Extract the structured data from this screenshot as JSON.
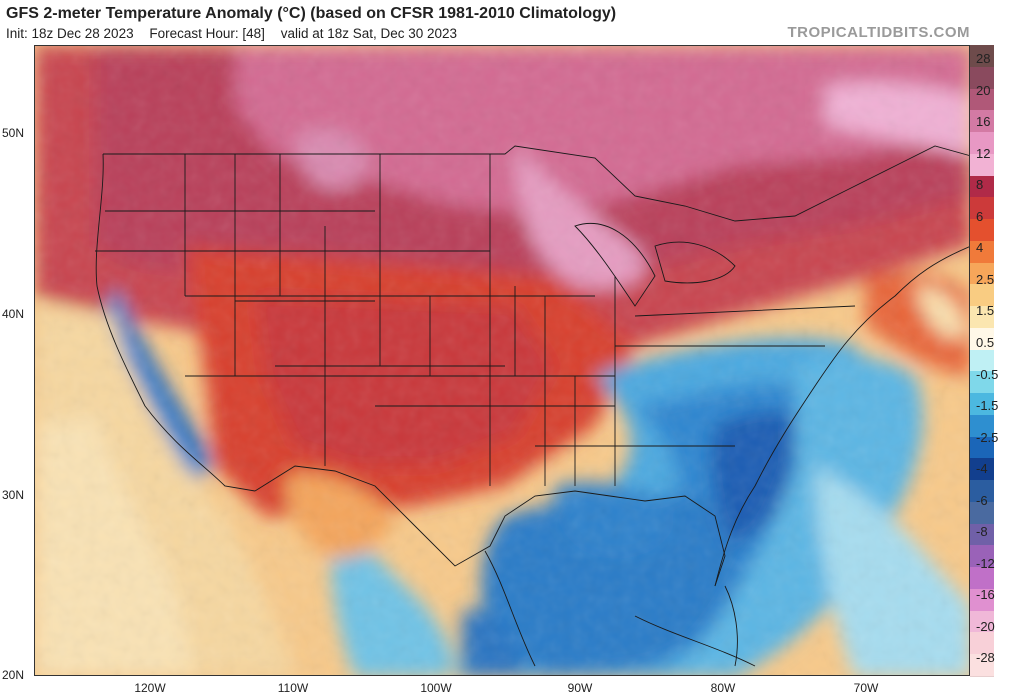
{
  "header": {
    "title": "GFS 2-meter Temperature Anomaly (°C) (based on CFSR 1981-2010 Climatology)",
    "init": "Init: 18z Dec 28 2023",
    "forecast_hour": "Forecast Hour: [48]",
    "valid": "valid at 18z Sat, Dec 30 2023",
    "brand": "TROPICALTIDBITS.COM"
  },
  "axes": {
    "lat_labels": [
      "50N",
      "40N",
      "30N",
      "20N"
    ],
    "lon_labels": [
      "120W",
      "110W",
      "100W",
      "90W",
      "80W",
      "70W"
    ]
  },
  "colorbar": {
    "labels": [
      "28",
      "20",
      "16",
      "12",
      "8",
      "6",
      "4",
      "2.5",
      "1.5",
      "0.5",
      "-0.5",
      "-1.5",
      "-2.5",
      "-4",
      "-6",
      "-8",
      "-12",
      "-16",
      "-20",
      "-28"
    ],
    "colors": [
      "#6e4b4b",
      "#8a4a5e",
      "#b05878",
      "#d37aa4",
      "#e898c4",
      "#f2b2d4",
      "#b02a48",
      "#cc3a3a",
      "#e4502e",
      "#f07a3a",
      "#f6a65a",
      "#f9cc82",
      "#fbe6b0",
      "#fff8e8",
      "#bff0f4",
      "#7fd8ea",
      "#4cb8e0",
      "#2e8fd0",
      "#1b66b8",
      "#123f8e",
      "#2b5da0",
      "#4a6aa0",
      "#7060a8",
      "#9a62b8",
      "#c070c8",
      "#e090d0",
      "#f0b8d8",
      "#f8d0d8",
      "#fbe0e0"
    ]
  }
}
